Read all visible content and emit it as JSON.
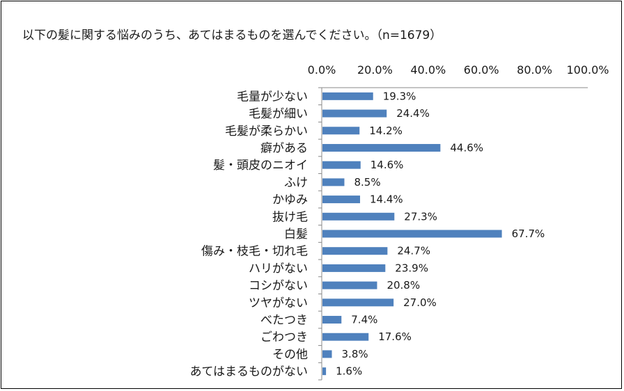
{
  "chart_data": {
    "type": "bar",
    "orientation": "horizontal",
    "title": "以下の髪に関する悩みのうち、あてはまるものを選んでください。（n=1679）",
    "xlabel": "",
    "ylabel": "",
    "xlim": [
      0,
      100
    ],
    "tick_labels": [
      "0.0%",
      "20.0%",
      "40.0%",
      "60.0%",
      "80.0%",
      "100.0%"
    ],
    "tick_values": [
      0,
      20,
      40,
      60,
      80,
      100
    ],
    "categories": [
      "毛量が少ない",
      "毛髪が細い",
      "毛髪が柔らかい",
      "癖がある",
      "髪・頭皮のニオイ",
      "ふけ",
      "かゆみ",
      "抜け毛",
      "白髪",
      "傷み・枝毛・切れ毛",
      "ハリがない",
      "コシがない",
      "ツヤがない",
      "べたつき",
      "ごわつき",
      "その他",
      "あてはまるものがない"
    ],
    "values": [
      19.3,
      24.4,
      14.2,
      44.6,
      14.6,
      8.5,
      14.4,
      27.3,
      67.7,
      24.7,
      23.9,
      20.8,
      27.0,
      7.4,
      17.6,
      3.8,
      1.6
    ],
    "value_labels": [
      "19.3%",
      "24.4%",
      "14.2%",
      "44.6%",
      "14.6%",
      "8.5%",
      "14.4%",
      "27.3%",
      "67.7%",
      "24.7%",
      "23.9%",
      "20.8%",
      "27.0%",
      "7.4%",
      "17.6%",
      "3.8%",
      "1.6%"
    ],
    "bar_color": "#4f81bd",
    "axis_color": "#888888",
    "grid": false,
    "legend": "none"
  }
}
